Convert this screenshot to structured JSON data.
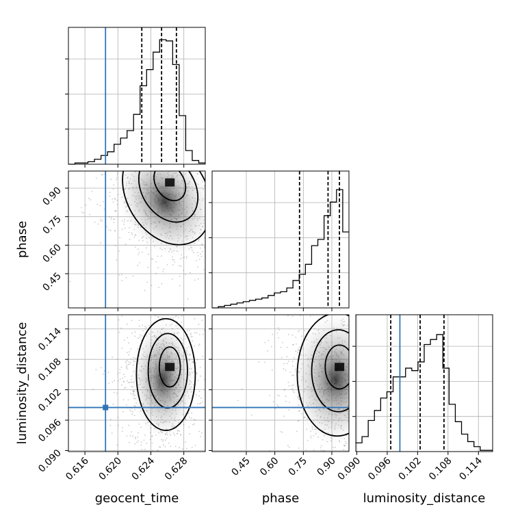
{
  "chart_data": {
    "type": "corner",
    "parameters": [
      "geocent_time",
      "phase",
      "luminosity_distance"
    ],
    "truth": {
      "geocent_time": 0.6185,
      "luminosity_distance": 0.0985,
      "color": "#3274b5"
    },
    "ranges": {
      "geocent_time": [
        0.614,
        0.6306
      ],
      "phase": [
        0.27,
        0.99
      ],
      "luminosity_distance": [
        0.0898,
        0.1168
      ]
    },
    "ticks": {
      "geocent_time": {
        "values": [
          0.616,
          0.62,
          0.624,
          0.628
        ],
        "labels": [
          "0.616",
          "0.620",
          "0.624",
          "0.628"
        ]
      },
      "phase": {
        "values": [
          0.45,
          0.6,
          0.75,
          0.9
        ],
        "labels": [
          "0.45",
          "0.60",
          "0.75",
          "0.90"
        ]
      },
      "luminosity_distance": {
        "values": [
          0.09,
          0.096,
          0.102,
          0.108,
          0.114
        ],
        "labels": [
          "0.090",
          "0.096",
          "0.102",
          "0.108",
          "0.114"
        ]
      }
    },
    "quantiles": {
      "geocent_time": [
        0.6229,
        0.6253,
        0.6271
      ],
      "phase": [
        0.73,
        0.88,
        0.94
      ],
      "luminosity_distance": [
        0.0967,
        0.1025,
        0.1072
      ]
    },
    "histograms": {
      "geocent_time": [
        0.0,
        0.01,
        0.01,
        0.02,
        0.04,
        0.07,
        0.1,
        0.16,
        0.21,
        0.27,
        0.4,
        0.63,
        0.76,
        0.9,
        1.0,
        0.99,
        0.8,
        0.39,
        0.11,
        0.03,
        0.01
      ],
      "phase": [
        0.0,
        0.01,
        0.02,
        0.03,
        0.04,
        0.05,
        0.06,
        0.07,
        0.08,
        0.1,
        0.12,
        0.13,
        0.16,
        0.22,
        0.27,
        0.35,
        0.5,
        0.55,
        0.74,
        0.85,
        0.95,
        0.61
      ],
      "luminosity_distance": [
        0.07,
        0.12,
        0.25,
        0.33,
        0.43,
        0.48,
        0.6,
        0.6,
        0.67,
        0.65,
        0.72,
        0.86,
        0.9,
        0.94,
        0.67,
        0.38,
        0.24,
        0.14,
        0.08,
        0.04,
        0.01,
        0.01
      ]
    },
    "grid": true,
    "xlabels": [
      "geocent_time",
      "phase",
      "luminosity_distance"
    ],
    "ylabels": [
      "",
      "phase",
      "luminosity_distance"
    ]
  }
}
